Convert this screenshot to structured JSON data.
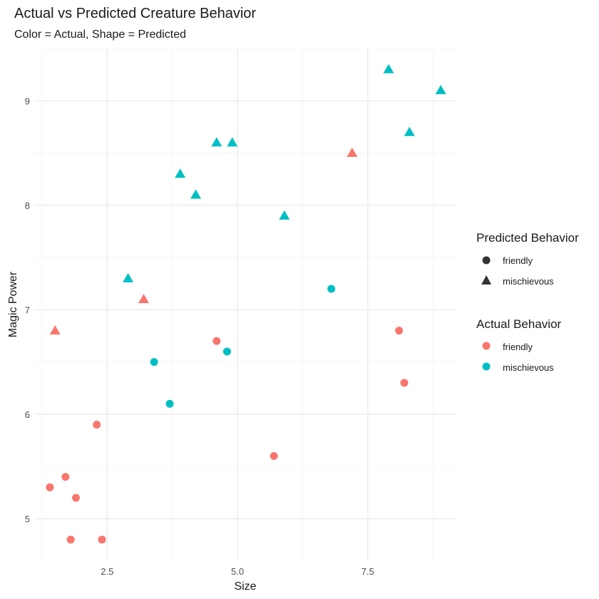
{
  "chart_data": {
    "type": "scatter",
    "title": "Actual vs Predicted Creature Behavior",
    "subtitle": "Color = Actual, Shape = Predicted",
    "xlabel": "Size",
    "ylabel": "Magic Power",
    "xlim": [
      1.1,
      9.2
    ],
    "ylim": [
      4.6,
      9.5
    ],
    "x_ticks": [
      2.5,
      5.0,
      7.5
    ],
    "x_tick_labels": [
      "2.5",
      "5.0",
      "7.5"
    ],
    "y_ticks": [
      5,
      6,
      7,
      8,
      9
    ],
    "y_tick_labels": [
      "5",
      "6",
      "7",
      "8",
      "9"
    ],
    "grid": true,
    "colors": {
      "friendly": "#F8766D",
      "mischievous": "#00BFC4"
    },
    "legend_shape": {
      "title": "Predicted Behavior",
      "entries": [
        {
          "label": "friendly",
          "shape": "circle"
        },
        {
          "label": "mischievous",
          "shape": "triangle"
        }
      ]
    },
    "legend_color": {
      "title": "Actual Behavior",
      "entries": [
        {
          "label": "friendly",
          "key": "friendly"
        },
        {
          "label": "mischievous",
          "key": "mischievous"
        }
      ]
    },
    "points": [
      {
        "x": 1.4,
        "y": 5.3,
        "actual": "friendly",
        "predicted": "friendly"
      },
      {
        "x": 1.7,
        "y": 5.4,
        "actual": "friendly",
        "predicted": "friendly"
      },
      {
        "x": 1.8,
        "y": 4.8,
        "actual": "friendly",
        "predicted": "friendly"
      },
      {
        "x": 1.9,
        "y": 5.2,
        "actual": "friendly",
        "predicted": "friendly"
      },
      {
        "x": 2.3,
        "y": 5.9,
        "actual": "friendly",
        "predicted": "friendly"
      },
      {
        "x": 2.4,
        "y": 4.8,
        "actual": "friendly",
        "predicted": "friendly"
      },
      {
        "x": 4.6,
        "y": 6.7,
        "actual": "friendly",
        "predicted": "friendly"
      },
      {
        "x": 5.7,
        "y": 5.6,
        "actual": "friendly",
        "predicted": "friendly"
      },
      {
        "x": 8.1,
        "y": 6.8,
        "actual": "friendly",
        "predicted": "friendly"
      },
      {
        "x": 8.2,
        "y": 6.3,
        "actual": "friendly",
        "predicted": "friendly"
      },
      {
        "x": 1.5,
        "y": 6.8,
        "actual": "friendly",
        "predicted": "mischievous"
      },
      {
        "x": 3.2,
        "y": 7.1,
        "actual": "friendly",
        "predicted": "mischievous"
      },
      {
        "x": 7.2,
        "y": 8.5,
        "actual": "friendly",
        "predicted": "mischievous"
      },
      {
        "x": 3.4,
        "y": 6.5,
        "actual": "mischievous",
        "predicted": "friendly"
      },
      {
        "x": 3.7,
        "y": 6.1,
        "actual": "mischievous",
        "predicted": "friendly"
      },
      {
        "x": 4.8,
        "y": 6.6,
        "actual": "mischievous",
        "predicted": "friendly"
      },
      {
        "x": 6.8,
        "y": 7.2,
        "actual": "mischievous",
        "predicted": "friendly"
      },
      {
        "x": 2.9,
        "y": 7.3,
        "actual": "mischievous",
        "predicted": "mischievous"
      },
      {
        "x": 3.9,
        "y": 8.3,
        "actual": "mischievous",
        "predicted": "mischievous"
      },
      {
        "x": 4.2,
        "y": 8.1,
        "actual": "mischievous",
        "predicted": "mischievous"
      },
      {
        "x": 4.6,
        "y": 8.6,
        "actual": "mischievous",
        "predicted": "mischievous"
      },
      {
        "x": 4.9,
        "y": 8.6,
        "actual": "mischievous",
        "predicted": "mischievous"
      },
      {
        "x": 5.9,
        "y": 7.9,
        "actual": "mischievous",
        "predicted": "mischievous"
      },
      {
        "x": 7.9,
        "y": 9.3,
        "actual": "mischievous",
        "predicted": "mischievous"
      },
      {
        "x": 8.3,
        "y": 8.7,
        "actual": "mischievous",
        "predicted": "mischievous"
      },
      {
        "x": 8.9,
        "y": 9.1,
        "actual": "mischievous",
        "predicted": "mischievous"
      }
    ]
  }
}
